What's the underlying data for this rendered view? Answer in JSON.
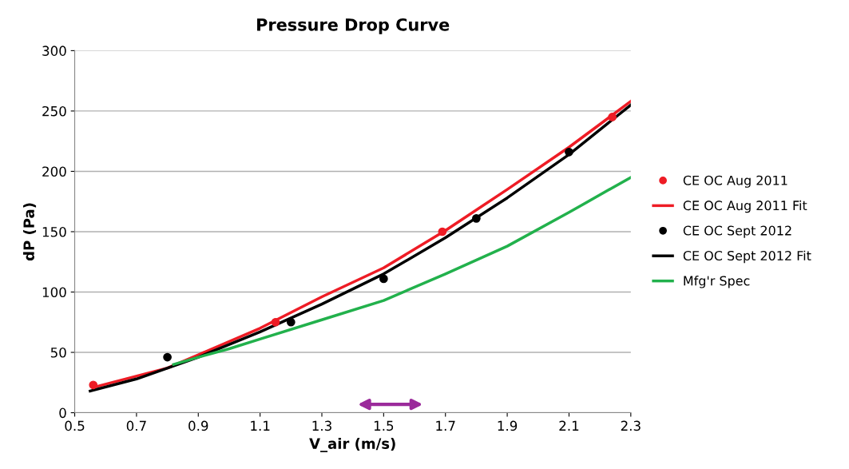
{
  "chart_data": {
    "type": "line",
    "title": "Pressure Drop Curve",
    "xlabel": "V_air (m/s)",
    "ylabel": "dP (Pa)",
    "xlim": [
      0.5,
      2.3
    ],
    "xticks": [
      0.5,
      0.7,
      0.9,
      1.1,
      1.3,
      1.5,
      1.7,
      1.9,
      2.1,
      2.3
    ],
    "ylim": [
      0,
      300
    ],
    "yticks": [
      0,
      50,
      100,
      150,
      200,
      250,
      300
    ],
    "grid": "y",
    "legend": "right",
    "series": [
      {
        "name": "CE OC Aug 2011",
        "type": "scatter",
        "marker": "circle",
        "color": "#ee1c25",
        "x": [
          0.56,
          1.15,
          1.69,
          2.24
        ],
        "values": [
          23,
          75,
          150,
          245
        ]
      },
      {
        "name": "CE OC Aug 2011 Fit",
        "color": "#ee1c25",
        "x": [
          0.56,
          0.8,
          0.9,
          1.1,
          1.3,
          1.5,
          1.7,
          1.9,
          2.1,
          2.3
        ],
        "values": [
          21,
          37,
          48,
          70,
          96,
          120,
          151,
          185,
          220,
          258
        ]
      },
      {
        "name": "CE OC Sept 2012",
        "type": "scatter",
        "marker": "circle",
        "color": "#000000",
        "x": [
          0.8,
          1.2,
          1.5,
          1.8,
          2.1
        ],
        "values": [
          46,
          75,
          111,
          161,
          216
        ]
      },
      {
        "name": "CE OC Sept 2012 Fit",
        "color": "#000000",
        "x": [
          0.55,
          0.7,
          0.9,
          1.1,
          1.3,
          1.5,
          1.7,
          1.9,
          2.1,
          2.3
        ],
        "values": [
          18,
          28,
          46,
          67,
          90,
          115,
          145,
          178,
          214,
          255
        ]
      },
      {
        "name": "Mfg'r Spec",
        "color": "#22b14c",
        "x": [
          0.82,
          0.9,
          1.0,
          1.1,
          1.3,
          1.5,
          1.7,
          1.9,
          2.1,
          2.3
        ],
        "values": [
          40,
          46,
          53,
          61,
          77,
          93,
          115,
          138,
          166,
          195
        ]
      }
    ]
  }
}
